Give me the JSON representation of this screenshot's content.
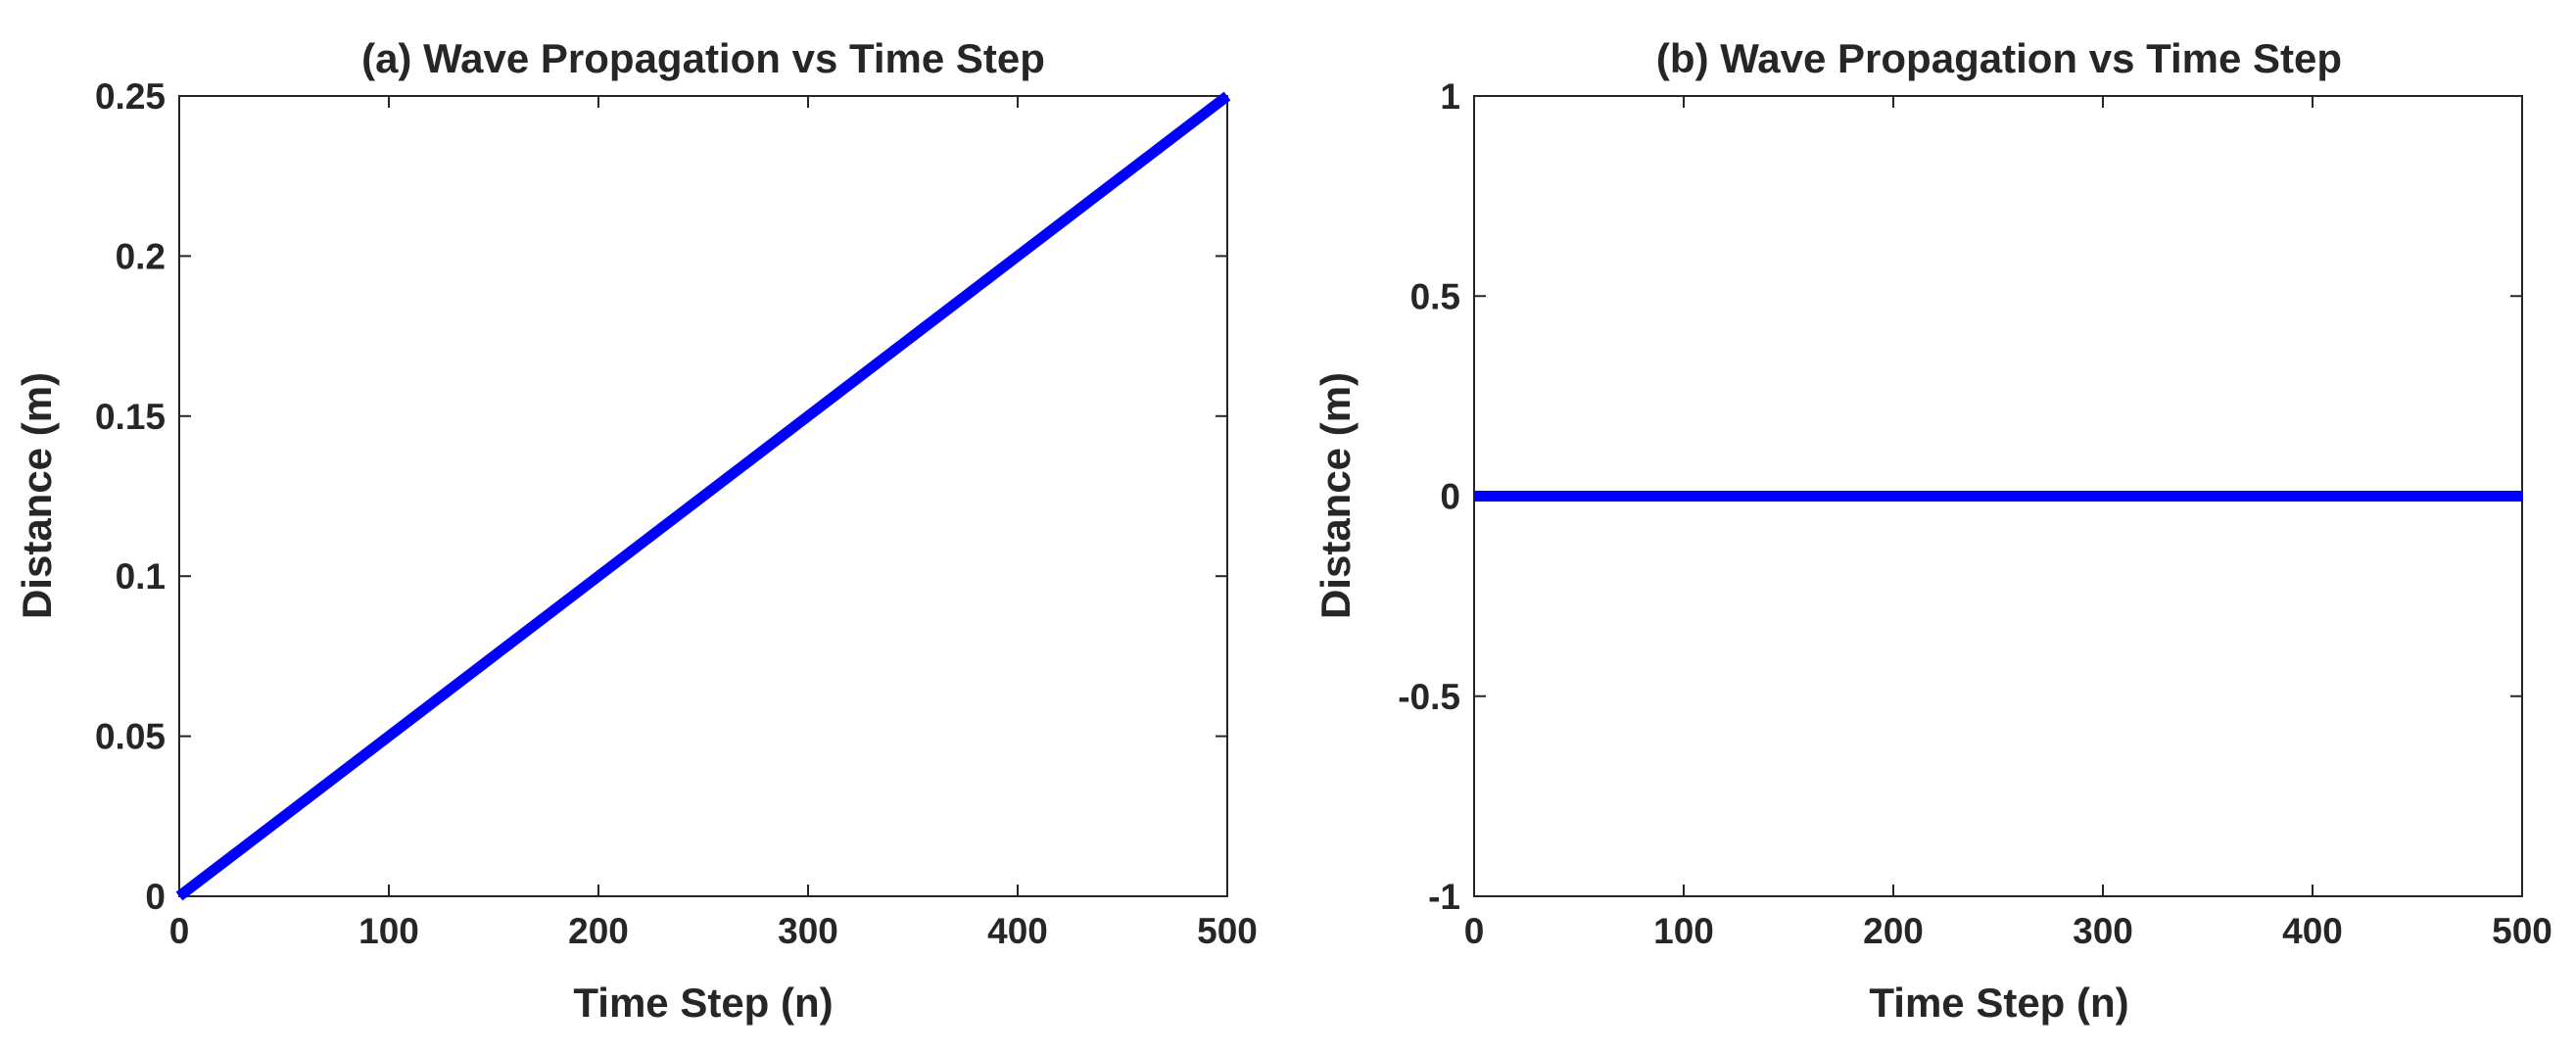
{
  "chart_data": [
    {
      "type": "line",
      "title": "(a) Wave Propagation vs Time Step",
      "xlabel": "Time Step (n)",
      "ylabel": "Distance (m)",
      "xlim": [
        0,
        500
      ],
      "ylim": [
        0,
        0.25
      ],
      "x_ticks": [
        0,
        100,
        200,
        300,
        400,
        500
      ],
      "x_tick_labels": [
        "0",
        "100",
        "200",
        "300",
        "400",
        "500"
      ],
      "y_ticks": [
        0,
        0.05,
        0.1,
        0.15,
        0.2,
        0.25
      ],
      "y_tick_labels": [
        "0",
        "0.05",
        "0.1",
        "0.15",
        "0.2",
        "0.25"
      ],
      "grid": false,
      "series": [
        {
          "color": "#0000ff",
          "x": [
            0,
            500
          ],
          "y": [
            0,
            0.25
          ]
        }
      ]
    },
    {
      "type": "line",
      "title": "(b) Wave Propagation vs Time Step",
      "xlabel": "Time Step (n)",
      "ylabel": "Distance (m)",
      "xlim": [
        0,
        500
      ],
      "ylim": [
        -1,
        1
      ],
      "x_ticks": [
        0,
        100,
        200,
        300,
        400,
        500
      ],
      "x_tick_labels": [
        "0",
        "100",
        "200",
        "300",
        "400",
        "500"
      ],
      "y_ticks": [
        -1,
        -0.5,
        0,
        0.5,
        1
      ],
      "y_tick_labels": [
        "-1",
        "-0.5",
        "0",
        "0.5",
        "1"
      ],
      "grid": false,
      "series": [
        {
          "color": "#0000ff",
          "x": [
            0,
            500
          ],
          "y": [
            0,
            0
          ]
        }
      ]
    }
  ]
}
